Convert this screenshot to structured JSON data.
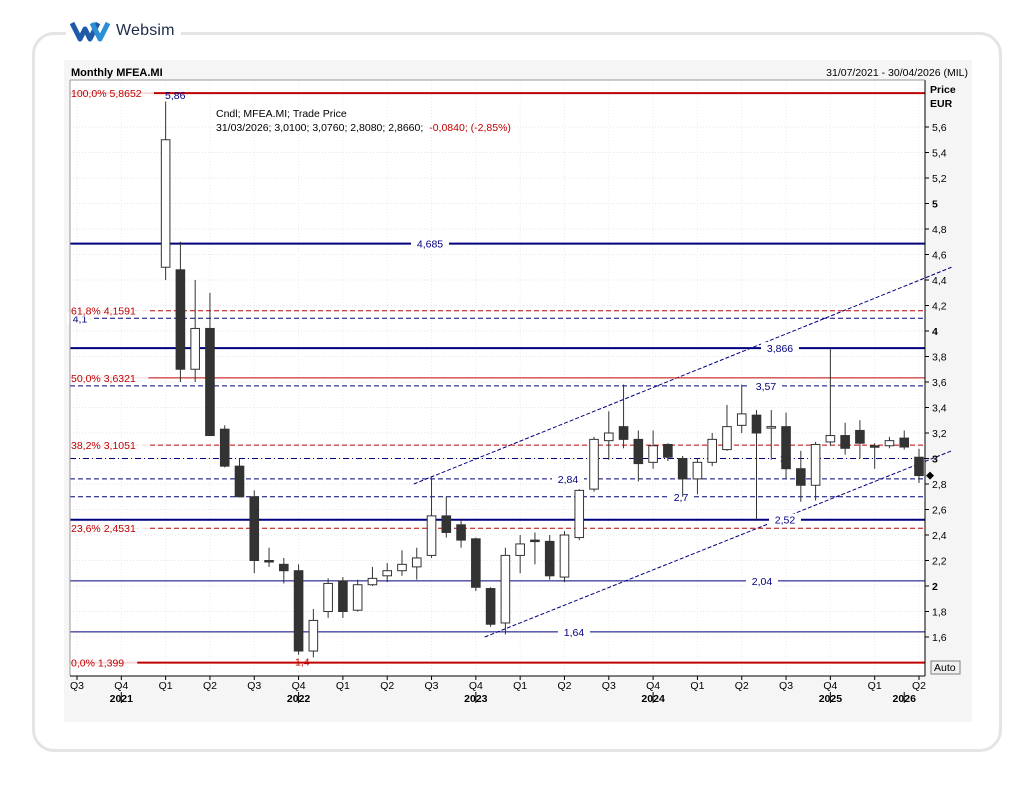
{
  "brand": {
    "name": "Websim",
    "logo_color": "#1e5aa8"
  },
  "header": {
    "title": "Monthly MFEA.MI",
    "range": "31/07/2021 - 30/04/2026 (MIL)"
  },
  "legend": {
    "line1": "Cndl; MFEA.MI; Trade Price",
    "line2_prefix": "31/03/2026; 3,0100; 3,0760; 2,8080; 2,8660;",
    "line2_change": "-0,0840; (-2,85%)"
  },
  "price_axis": {
    "title": "Price",
    "unit": "EUR",
    "auto_label": "Auto"
  },
  "chart_data": {
    "type": "candlestick",
    "title": "Monthly MFEA.MI",
    "ylabel": "Price EUR",
    "ylim": [
      1.35,
      6.0
    ],
    "y_ticks": [
      1.6,
      1.8,
      2.0,
      2.2,
      2.4,
      2.6,
      2.8,
      3.0,
      3.2,
      3.4,
      3.6,
      3.8,
      4.0,
      4.2,
      4.4,
      4.6,
      4.8,
      5.0,
      5.2,
      5.4,
      5.6
    ],
    "y_tick_labels": [
      "1,6",
      "1,8",
      "2",
      "2,2",
      "2,4",
      "2,6",
      "2,8",
      "3",
      "3,2",
      "3,4",
      "3,6",
      "3,8",
      "4",
      "4,2",
      "4,4",
      "4,6",
      "4,8",
      "5",
      "5,2",
      "5,4",
      "5,6"
    ],
    "quarter_ticks": [
      {
        "label": "Q3",
        "month": 0
      },
      {
        "label": "Q4",
        "month": 3
      },
      {
        "label": "Q1",
        "month": 6
      },
      {
        "label": "Q2",
        "month": 9
      },
      {
        "label": "Q3",
        "month": 12
      },
      {
        "label": "Q4",
        "month": 15
      },
      {
        "label": "Q1",
        "month": 18
      },
      {
        "label": "Q2",
        "month": 21
      },
      {
        "label": "Q3",
        "month": 24
      },
      {
        "label": "Q4",
        "month": 27
      },
      {
        "label": "Q1",
        "month": 30
      },
      {
        "label": "Q2",
        "month": 33
      },
      {
        "label": "Q3",
        "month": 36
      },
      {
        "label": "Q4",
        "month": 39
      },
      {
        "label": "Q1",
        "month": 42
      },
      {
        "label": "Q2",
        "month": 45
      },
      {
        "label": "Q3",
        "month": 48
      },
      {
        "label": "Q4",
        "month": 51
      },
      {
        "label": "Q1",
        "month": 54
      },
      {
        "label": "Q2",
        "month": 57
      }
    ],
    "year_labels": [
      {
        "label": "2021",
        "month": 3
      },
      {
        "label": "2022",
        "month": 15
      },
      {
        "label": "2023",
        "month": 27
      },
      {
        "label": "2024",
        "month": 39
      },
      {
        "label": "2025",
        "month": 51
      },
      {
        "label": "2026",
        "month": 56
      }
    ],
    "candles": [
      {
        "m": 6,
        "o": 4.5,
        "h": 5.8,
        "l": 4.4,
        "c": 5.5
      },
      {
        "m": 7,
        "o": 4.48,
        "h": 4.7,
        "l": 3.6,
        "c": 3.7
      },
      {
        "m": 8,
        "o": 3.7,
        "h": 4.4,
        "l": 3.6,
        "c": 4.02
      },
      {
        "m": 9,
        "o": 4.02,
        "h": 4.3,
        "l": 3.18,
        "c": 3.18
      },
      {
        "m": 10,
        "o": 3.23,
        "h": 3.26,
        "l": 2.93,
        "c": 2.94
      },
      {
        "m": 11,
        "o": 2.94,
        "h": 3.0,
        "l": 2.7,
        "c": 2.7
      },
      {
        "m": 12,
        "o": 2.7,
        "h": 2.75,
        "l": 2.1,
        "c": 2.2
      },
      {
        "m": 13,
        "o": 2.2,
        "h": 2.3,
        "l": 2.15,
        "c": 2.19
      },
      {
        "m": 14,
        "o": 2.17,
        "h": 2.22,
        "l": 2.02,
        "c": 2.12
      },
      {
        "m": 15,
        "o": 2.12,
        "h": 2.17,
        "l": 1.46,
        "c": 1.49
      },
      {
        "m": 16,
        "o": 1.49,
        "h": 1.82,
        "l": 1.44,
        "c": 1.73
      },
      {
        "m": 17,
        "o": 1.8,
        "h": 2.06,
        "l": 1.75,
        "c": 2.02
      },
      {
        "m": 18,
        "o": 2.04,
        "h": 2.07,
        "l": 1.75,
        "c": 1.8
      },
      {
        "m": 19,
        "o": 1.81,
        "h": 2.05,
        "l": 1.8,
        "c": 2.01
      },
      {
        "m": 20,
        "o": 2.01,
        "h": 2.15,
        "l": 2.0,
        "c": 2.06
      },
      {
        "m": 21,
        "o": 2.08,
        "h": 2.18,
        "l": 2.03,
        "c": 2.12
      },
      {
        "m": 22,
        "o": 2.12,
        "h": 2.28,
        "l": 2.08,
        "c": 2.17
      },
      {
        "m": 23,
        "o": 2.15,
        "h": 2.3,
        "l": 2.05,
        "c": 2.22
      },
      {
        "m": 24,
        "o": 2.24,
        "h": 2.85,
        "l": 2.22,
        "c": 2.55
      },
      {
        "m": 25,
        "o": 2.55,
        "h": 2.7,
        "l": 2.38,
        "c": 2.42
      },
      {
        "m": 26,
        "o": 2.48,
        "h": 2.52,
        "l": 2.3,
        "c": 2.36
      },
      {
        "m": 27,
        "o": 2.37,
        "h": 2.38,
        "l": 1.96,
        "c": 1.99
      },
      {
        "m": 28,
        "o": 1.98,
        "h": 1.99,
        "l": 1.68,
        "c": 1.7
      },
      {
        "m": 29,
        "o": 1.71,
        "h": 2.3,
        "l": 1.62,
        "c": 2.24
      },
      {
        "m": 30,
        "o": 2.24,
        "h": 2.4,
        "l": 2.1,
        "c": 2.33
      },
      {
        "m": 31,
        "o": 2.36,
        "h": 2.42,
        "l": 2.17,
        "c": 2.35
      },
      {
        "m": 32,
        "o": 2.35,
        "h": 2.4,
        "l": 2.05,
        "c": 2.08
      },
      {
        "m": 33,
        "o": 2.07,
        "h": 2.43,
        "l": 2.03,
        "c": 2.4
      },
      {
        "m": 34,
        "o": 2.38,
        "h": 2.76,
        "l": 2.36,
        "c": 2.75
      },
      {
        "m": 35,
        "o": 2.76,
        "h": 3.17,
        "l": 2.74,
        "c": 3.15
      },
      {
        "m": 36,
        "o": 3.14,
        "h": 3.37,
        "l": 2.99,
        "c": 3.2
      },
      {
        "m": 37,
        "o": 3.25,
        "h": 3.58,
        "l": 3.08,
        "c": 3.15
      },
      {
        "m": 38,
        "o": 3.15,
        "h": 3.22,
        "l": 2.82,
        "c": 2.96
      },
      {
        "m": 39,
        "o": 2.97,
        "h": 3.22,
        "l": 2.92,
        "c": 3.1
      },
      {
        "m": 40,
        "o": 3.11,
        "h": 3.12,
        "l": 2.98,
        "c": 3.01
      },
      {
        "m": 41,
        "o": 3.0,
        "h": 3.02,
        "l": 2.7,
        "c": 2.84
      },
      {
        "m": 42,
        "o": 2.84,
        "h": 3.0,
        "l": 2.72,
        "c": 2.97
      },
      {
        "m": 43,
        "o": 2.97,
        "h": 3.2,
        "l": 2.94,
        "c": 3.15
      },
      {
        "m": 44,
        "o": 3.07,
        "h": 3.42,
        "l": 3.06,
        "c": 3.25
      },
      {
        "m": 45,
        "o": 3.26,
        "h": 3.58,
        "l": 3.2,
        "c": 3.35
      },
      {
        "m": 46,
        "o": 3.34,
        "h": 3.38,
        "l": 2.52,
        "c": 3.2
      },
      {
        "m": 47,
        "o": 3.25,
        "h": 3.38,
        "l": 2.99,
        "c": 3.25
      },
      {
        "m": 48,
        "o": 3.25,
        "h": 3.36,
        "l": 2.84,
        "c": 2.92
      },
      {
        "m": 49,
        "o": 2.92,
        "h": 3.06,
        "l": 2.66,
        "c": 2.79
      },
      {
        "m": 50,
        "o": 2.79,
        "h": 3.13,
        "l": 2.67,
        "c": 3.11
      },
      {
        "m": 51,
        "o": 3.13,
        "h": 3.86,
        "l": 3.1,
        "c": 3.18
      },
      {
        "m": 52,
        "o": 3.18,
        "h": 3.28,
        "l": 3.03,
        "c": 3.08
      },
      {
        "m": 53,
        "o": 3.22,
        "h": 3.3,
        "l": 3.0,
        "c": 3.12
      },
      {
        "m": 54,
        "o": 3.1,
        "h": 3.12,
        "l": 2.92,
        "c": 3.09
      },
      {
        "m": 55,
        "o": 3.1,
        "h": 3.17,
        "l": 3.08,
        "c": 3.14
      },
      {
        "m": 56,
        "o": 3.16,
        "h": 3.22,
        "l": 3.07,
        "c": 3.09
      },
      {
        "m": 57,
        "o": 3.01,
        "h": 3.076,
        "l": 2.808,
        "c": 2.866
      }
    ],
    "last_price_marker": 2.866,
    "fib_levels": [
      {
        "pct": "100,0%",
        "value": 5.8652,
        "label": "100,0%   5,8652",
        "style": "solid"
      },
      {
        "pct": "61,8%",
        "value": 4.1591,
        "label": "61,8%   4,1591",
        "style": "dashed"
      },
      {
        "pct": "50,0%",
        "value": 3.6321,
        "label": "50,0%   3,6321",
        "style": "solid"
      },
      {
        "pct": "38,2%",
        "value": 3.1051,
        "label": "38,2%   3,1051",
        "style": "dashed"
      },
      {
        "pct": "23,6%",
        "value": 2.4531,
        "label": "23,6%   2,4531",
        "style": "dashed"
      },
      {
        "pct": "0,0%",
        "value": 1.399,
        "label": "0,0%   1,399",
        "style": "solid"
      }
    ],
    "horizontal_lines": [
      {
        "value": 4.685,
        "label": "4,685",
        "style": "solid",
        "weight": "bold"
      },
      {
        "value": 4.1,
        "label": "4,1",
        "style": "dashed",
        "weight": "normal"
      },
      {
        "value": 3.866,
        "label": "3,866",
        "style": "solid",
        "weight": "bold"
      },
      {
        "value": 3.57,
        "label": "3,57",
        "style": "dashed",
        "weight": "normal"
      },
      {
        "value": 3.0,
        "label": "3",
        "style": "dashdot",
        "weight": "normal"
      },
      {
        "value": 2.84,
        "label": "2,84",
        "style": "dashed",
        "weight": "normal"
      },
      {
        "value": 2.7,
        "label": "2,7",
        "style": "dashed",
        "weight": "normal"
      },
      {
        "value": 2.52,
        "label": "2,52",
        "style": "solid",
        "weight": "bold"
      },
      {
        "value": 2.04,
        "label": "2,04",
        "style": "solid",
        "weight": "normal"
      },
      {
        "value": 1.64,
        "label": "1,64",
        "style": "solid",
        "weight": "normal"
      }
    ],
    "fib_top_label": "5,86",
    "fib_bottom_label": "1,4",
    "channel": {
      "upper": {
        "from": {
          "m": 22.8,
          "v": 2.8
        },
        "to": {
          "m": 59.2,
          "v": 4.5
        }
      },
      "lower": {
        "from": {
          "m": 27.6,
          "v": 1.6
        },
        "to": {
          "m": 59.2,
          "v": 3.06
        }
      }
    }
  },
  "colors": {
    "fib": "#c00000",
    "level": "#00007f",
    "bear": "#333333",
    "bull": "#ffffff",
    "text": "#000000"
  }
}
